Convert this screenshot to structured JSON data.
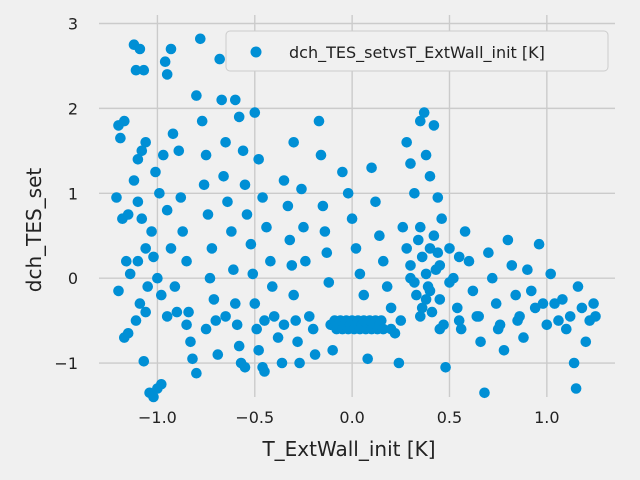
{
  "chart_data": {
    "type": "scatter",
    "xlabel": "T_ExtWall_init [K]",
    "ylabel": "dch_TES_set",
    "xlim": [
      -1.3,
      1.35
    ],
    "ylim": [
      -1.4,
      3.1
    ],
    "x_ticks": [
      "−1.0",
      "−0.5",
      "0.0",
      "0.5",
      "1.0"
    ],
    "y_ticks": [
      "−1",
      "0",
      "1",
      "2",
      "3"
    ],
    "grid": true,
    "legend_placement": "top-right",
    "series": [
      {
        "name": "dch_TES_setvsT_ExtWall_init [K]",
        "color": "#008fd5",
        "points": [
          [
            -1.2,
            1.8
          ],
          [
            -1.19,
            1.65
          ],
          [
            -1.17,
            1.85
          ],
          [
            -1.21,
            0.95
          ],
          [
            -1.18,
            0.7
          ],
          [
            -1.15,
            0.75
          ],
          [
            -1.2,
            -0.15
          ],
          [
            -1.17,
            -0.7
          ],
          [
            -1.15,
            -0.65
          ],
          [
            -1.16,
            0.2
          ],
          [
            -1.14,
            0.05
          ],
          [
            -1.12,
            2.75
          ],
          [
            -1.11,
            2.45
          ],
          [
            -1.09,
            2.7
          ],
          [
            -1.07,
            2.45
          ],
          [
            -1.1,
            1.4
          ],
          [
            -1.08,
            1.5
          ],
          [
            -1.06,
            1.6
          ],
          [
            -1.12,
            1.15
          ],
          [
            -1.1,
            0.9
          ],
          [
            -1.08,
            0.7
          ],
          [
            -1.06,
            0.35
          ],
          [
            -1.1,
            0.2
          ],
          [
            -1.05,
            -0.1
          ],
          [
            -1.09,
            -0.3
          ],
          [
            -1.11,
            -0.5
          ],
          [
            -1.06,
            -0.4
          ],
          [
            -1.07,
            -0.98
          ],
          [
            -1.04,
            -1.35
          ],
          [
            -1.02,
            -1.4
          ],
          [
            -1.0,
            -1.3
          ],
          [
            -0.98,
            -1.25
          ],
          [
            -1.03,
            0.55
          ],
          [
            -1.02,
            0.25
          ],
          [
            -1.0,
            0.0
          ],
          [
            -0.98,
            -0.2
          ],
          [
            -1.01,
            1.25
          ],
          [
            -0.99,
            1.0
          ],
          [
            -0.97,
            1.45
          ],
          [
            -0.96,
            2.55
          ],
          [
            -0.95,
            2.4
          ],
          [
            -0.93,
            2.7
          ],
          [
            -0.95,
            0.8
          ],
          [
            -0.93,
            0.35
          ],
          [
            -0.91,
            -0.1
          ],
          [
            -0.9,
            -0.4
          ],
          [
            -0.92,
            1.7
          ],
          [
            -0.89,
            1.5
          ],
          [
            -0.88,
            0.95
          ],
          [
            -0.87,
            0.55
          ],
          [
            -0.85,
            0.2
          ],
          [
            -0.84,
            -0.4
          ],
          [
            -0.83,
            -0.75
          ],
          [
            -0.82,
            -0.95
          ],
          [
            -0.8,
            -1.12
          ],
          [
            -0.78,
            2.82
          ],
          [
            -0.8,
            2.15
          ],
          [
            -0.77,
            1.85
          ],
          [
            -0.75,
            1.45
          ],
          [
            -0.76,
            1.1
          ],
          [
            -0.74,
            0.75
          ],
          [
            -0.72,
            0.35
          ],
          [
            -0.73,
            0.0
          ],
          [
            -0.71,
            -0.25
          ],
          [
            -0.7,
            -0.5
          ],
          [
            -0.69,
            -0.9
          ],
          [
            -0.68,
            2.58
          ],
          [
            -0.67,
            2.1
          ],
          [
            -0.65,
            1.6
          ],
          [
            -0.66,
            1.2
          ],
          [
            -0.64,
            0.9
          ],
          [
            -0.62,
            0.55
          ],
          [
            -0.61,
            0.1
          ],
          [
            -0.6,
            -0.3
          ],
          [
            -0.59,
            -0.55
          ],
          [
            -0.58,
            -0.8
          ],
          [
            -0.57,
            -1.0
          ],
          [
            -0.55,
            -1.05
          ],
          [
            -0.6,
            2.1
          ],
          [
            -0.58,
            1.9
          ],
          [
            -0.56,
            1.5
          ],
          [
            -0.55,
            1.1
          ],
          [
            -0.54,
            0.75
          ],
          [
            -0.52,
            0.4
          ],
          [
            -0.51,
            0.05
          ],
          [
            -0.5,
            -0.3
          ],
          [
            -0.49,
            -0.6
          ],
          [
            -0.48,
            -0.85
          ],
          [
            -0.46,
            -1.05
          ],
          [
            -0.45,
            -1.1
          ],
          [
            -0.5,
            1.95
          ],
          [
            -0.48,
            1.4
          ],
          [
            -0.46,
            0.95
          ],
          [
            -0.44,
            0.6
          ],
          [
            -0.42,
            0.2
          ],
          [
            -0.41,
            -0.1
          ],
          [
            -0.4,
            -0.45
          ],
          [
            -0.38,
            -0.7
          ],
          [
            -0.36,
            -1.0
          ],
          [
            -0.35,
            1.15
          ],
          [
            -0.33,
            0.85
          ],
          [
            -0.32,
            0.45
          ],
          [
            -0.31,
            0.15
          ],
          [
            -0.3,
            -0.2
          ],
          [
            -0.29,
            -0.5
          ],
          [
            -0.28,
            -0.75
          ],
          [
            -0.27,
            -1.0
          ],
          [
            -0.3,
            1.6
          ],
          [
            -0.26,
            1.05
          ],
          [
            -0.25,
            0.6
          ],
          [
            -0.24,
            0.2
          ],
          [
            -0.22,
            -0.45
          ],
          [
            -0.2,
            -0.6
          ],
          [
            -0.19,
            -0.9
          ],
          [
            -0.17,
            1.85
          ],
          [
            -0.16,
            1.45
          ],
          [
            -0.15,
            0.85
          ],
          [
            -0.14,
            0.55
          ],
          [
            -0.13,
            0.3
          ],
          [
            -0.12,
            -0.05
          ],
          [
            -0.11,
            -0.55
          ],
          [
            -0.1,
            -0.85
          ],
          [
            -0.09,
            -0.5
          ],
          [
            -0.08,
            -0.6
          ],
          [
            -0.07,
            -0.55
          ],
          [
            -0.06,
            -0.5
          ],
          [
            -0.05,
            -0.6
          ],
          [
            -0.04,
            -0.55
          ],
          [
            -0.03,
            -0.5
          ],
          [
            -0.02,
            -0.6
          ],
          [
            -0.01,
            -0.55
          ],
          [
            0.0,
            -0.5
          ],
          [
            0.01,
            -0.6
          ],
          [
            0.02,
            -0.55
          ],
          [
            0.03,
            -0.5
          ],
          [
            0.04,
            -0.6
          ],
          [
            0.05,
            -0.55
          ],
          [
            0.06,
            -0.5
          ],
          [
            0.07,
            -0.6
          ],
          [
            0.08,
            -0.55
          ],
          [
            0.09,
            -0.5
          ],
          [
            0.1,
            -0.6
          ],
          [
            0.11,
            -0.55
          ],
          [
            0.12,
            -0.5
          ],
          [
            0.13,
            -0.6
          ],
          [
            0.14,
            -0.55
          ],
          [
            0.15,
            -0.5
          ],
          [
            0.16,
            -0.6
          ],
          [
            -0.05,
            1.25
          ],
          [
            -0.02,
            1.0
          ],
          [
            0.0,
            0.7
          ],
          [
            0.02,
            0.35
          ],
          [
            0.04,
            0.05
          ],
          [
            0.06,
            -0.2
          ],
          [
            0.08,
            -0.95
          ],
          [
            0.1,
            1.3
          ],
          [
            0.12,
            0.9
          ],
          [
            0.14,
            0.5
          ],
          [
            0.16,
            0.2
          ],
          [
            0.18,
            -0.1
          ],
          [
            0.2,
            -0.35
          ],
          [
            0.22,
            -0.65
          ],
          [
            0.24,
            -1.0
          ],
          [
            0.26,
            0.6
          ],
          [
            0.28,
            0.35
          ],
          [
            0.3,
            0.15
          ],
          [
            0.32,
            -0.05
          ],
          [
            0.34,
            0.45
          ],
          [
            0.36,
            0.25
          ],
          [
            0.38,
            0.05
          ],
          [
            0.4,
            -0.15
          ],
          [
            0.42,
            0.5
          ],
          [
            0.44,
            0.3
          ],
          [
            0.28,
            1.6
          ],
          [
            0.3,
            1.35
          ],
          [
            0.32,
            1.0
          ],
          [
            0.35,
            1.85
          ],
          [
            0.37,
            1.95
          ],
          [
            0.38,
            1.45
          ],
          [
            0.4,
            1.2
          ],
          [
            0.42,
            1.8
          ],
          [
            0.44,
            0.95
          ],
          [
            0.46,
            0.7
          ],
          [
            0.3,
            0.0
          ],
          [
            0.33,
            -0.2
          ],
          [
            0.36,
            -0.35
          ],
          [
            0.39,
            -0.1
          ],
          [
            0.41,
            -0.4
          ],
          [
            0.43,
            0.1
          ],
          [
            0.45,
            -0.25
          ],
          [
            0.47,
            -0.55
          ],
          [
            0.48,
            -1.05
          ],
          [
            0.5,
            0.35
          ],
          [
            0.52,
            0.0
          ],
          [
            0.54,
            -0.35
          ],
          [
            0.56,
            -0.6
          ],
          [
            0.58,
            0.55
          ],
          [
            0.6,
            0.2
          ],
          [
            0.62,
            -0.15
          ],
          [
            0.64,
            -0.45
          ],
          [
            0.66,
            -0.75
          ],
          [
            0.68,
            -1.35
          ],
          [
            0.7,
            0.3
          ],
          [
            0.72,
            0.0
          ],
          [
            0.74,
            -0.3
          ],
          [
            0.76,
            -0.55
          ],
          [
            0.78,
            -0.85
          ],
          [
            0.8,
            0.45
          ],
          [
            0.82,
            0.15
          ],
          [
            0.84,
            -0.2
          ],
          [
            0.86,
            -0.45
          ],
          [
            0.88,
            -0.7
          ],
          [
            0.9,
            0.1
          ],
          [
            0.92,
            -0.15
          ],
          [
            0.94,
            -0.35
          ],
          [
            0.96,
            0.4
          ],
          [
            0.98,
            -0.3
          ],
          [
            1.0,
            -0.55
          ],
          [
            1.02,
            0.05
          ],
          [
            1.04,
            -0.3
          ],
          [
            1.06,
            -0.5
          ],
          [
            1.08,
            -0.25
          ],
          [
            1.1,
            -0.6
          ],
          [
            1.12,
            -0.45
          ],
          [
            1.14,
            -1.0
          ],
          [
            1.15,
            -1.3
          ],
          [
            1.16,
            -0.1
          ],
          [
            1.18,
            -0.35
          ],
          [
            1.2,
            -0.75
          ],
          [
            1.22,
            -0.5
          ],
          [
            1.24,
            -0.3
          ],
          [
            1.25,
            -0.45
          ],
          [
            -0.35,
            -0.55
          ],
          [
            -0.45,
            -0.5
          ],
          [
            -0.65,
            -0.45
          ],
          [
            -0.75,
            -0.6
          ],
          [
            -0.85,
            -0.55
          ],
          [
            -0.95,
            -0.45
          ],
          [
            0.2,
            -0.6
          ],
          [
            0.25,
            -0.5
          ],
          [
            0.35,
            -0.45
          ],
          [
            0.45,
            -0.6
          ],
          [
            0.55,
            -0.5
          ],
          [
            0.65,
            -0.45
          ],
          [
            0.75,
            -0.6
          ],
          [
            0.85,
            -0.5
          ],
          [
            0.35,
            0.6
          ],
          [
            0.4,
            0.35
          ],
          [
            0.45,
            0.15
          ],
          [
            0.38,
            -0.25
          ],
          [
            0.5,
            -0.05
          ],
          [
            0.55,
            0.25
          ]
        ]
      }
    ]
  }
}
